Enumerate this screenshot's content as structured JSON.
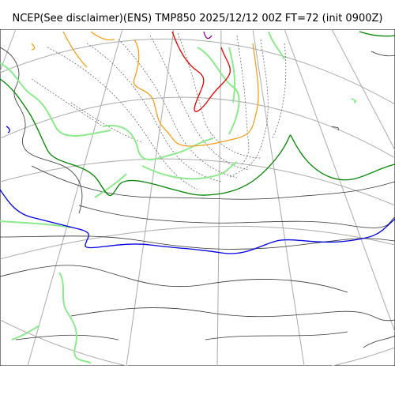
{
  "title": "NCEP(See disclaimer)(ENS) TMP850 2025/12/12 00Z FT=72 (init 0900Z)",
  "map": {
    "colors": {
      "coastline": "#333333",
      "graticule": "#aaaaaa",
      "isotherm_dotted": "#555555",
      "ensemble_green": "#8ee88e",
      "contour_dark_green": "#008000",
      "contour_blue": "#0000e0",
      "contour_orange": "#f0a020",
      "contour_red": "#e00000",
      "contour_purple": "#800080"
    }
  }
}
